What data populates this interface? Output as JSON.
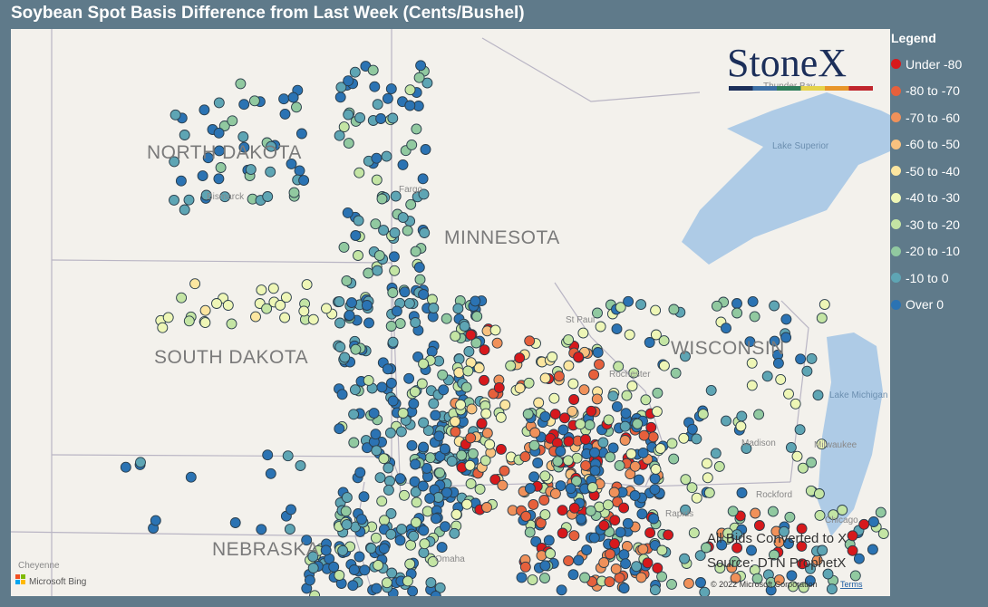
{
  "header": {
    "title": "Soybean Spot Basis Difference from Last Week (Cents/Bushel)"
  },
  "legend": {
    "title": "Legend",
    "items": [
      {
        "label": "Under -80",
        "color": "#d7191c"
      },
      {
        "label": "-80 to -70",
        "color": "#e6603c"
      },
      {
        "label": "-70 to -60",
        "color": "#f0915a"
      },
      {
        "label": "-60 to -50",
        "color": "#f8c17f"
      },
      {
        "label": "-50 to -40",
        "color": "#fce6a0"
      },
      {
        "label": "-40 to -30",
        "color": "#eef6b6"
      },
      {
        "label": "-30 to -20",
        "color": "#c4e5a4"
      },
      {
        "label": "-20 to -10",
        "color": "#91c9a0"
      },
      {
        "label": "-10 to 0",
        "color": "#5ea5b4"
      },
      {
        "label": "Over 0",
        "color": "#2b73b3"
      }
    ]
  },
  "map": {
    "states": [
      "NORTH DAKOTA",
      "MINNESOTA",
      "SOUTH DAKOTA",
      "WISCONSIN",
      "NEBRASKA"
    ],
    "places": [
      "Bismarck",
      "Fargo",
      "St Paul",
      "Rochester",
      "Madison",
      "Milwaukee",
      "Rockford",
      "Chicago",
      "Cheyenne",
      "Omaha",
      "Rapids",
      "Thunder Bay"
    ],
    "water": [
      "Lake Superior",
      "Lake Michigan"
    ],
    "logo": "StoneX",
    "notes": [
      "All Bids Converted to X",
      "Source: DTN ProphetX"
    ],
    "attribution": "Microsoft Bing",
    "copyright": "© 2022 Microsoft Corporation",
    "terms": "Terms"
  }
}
